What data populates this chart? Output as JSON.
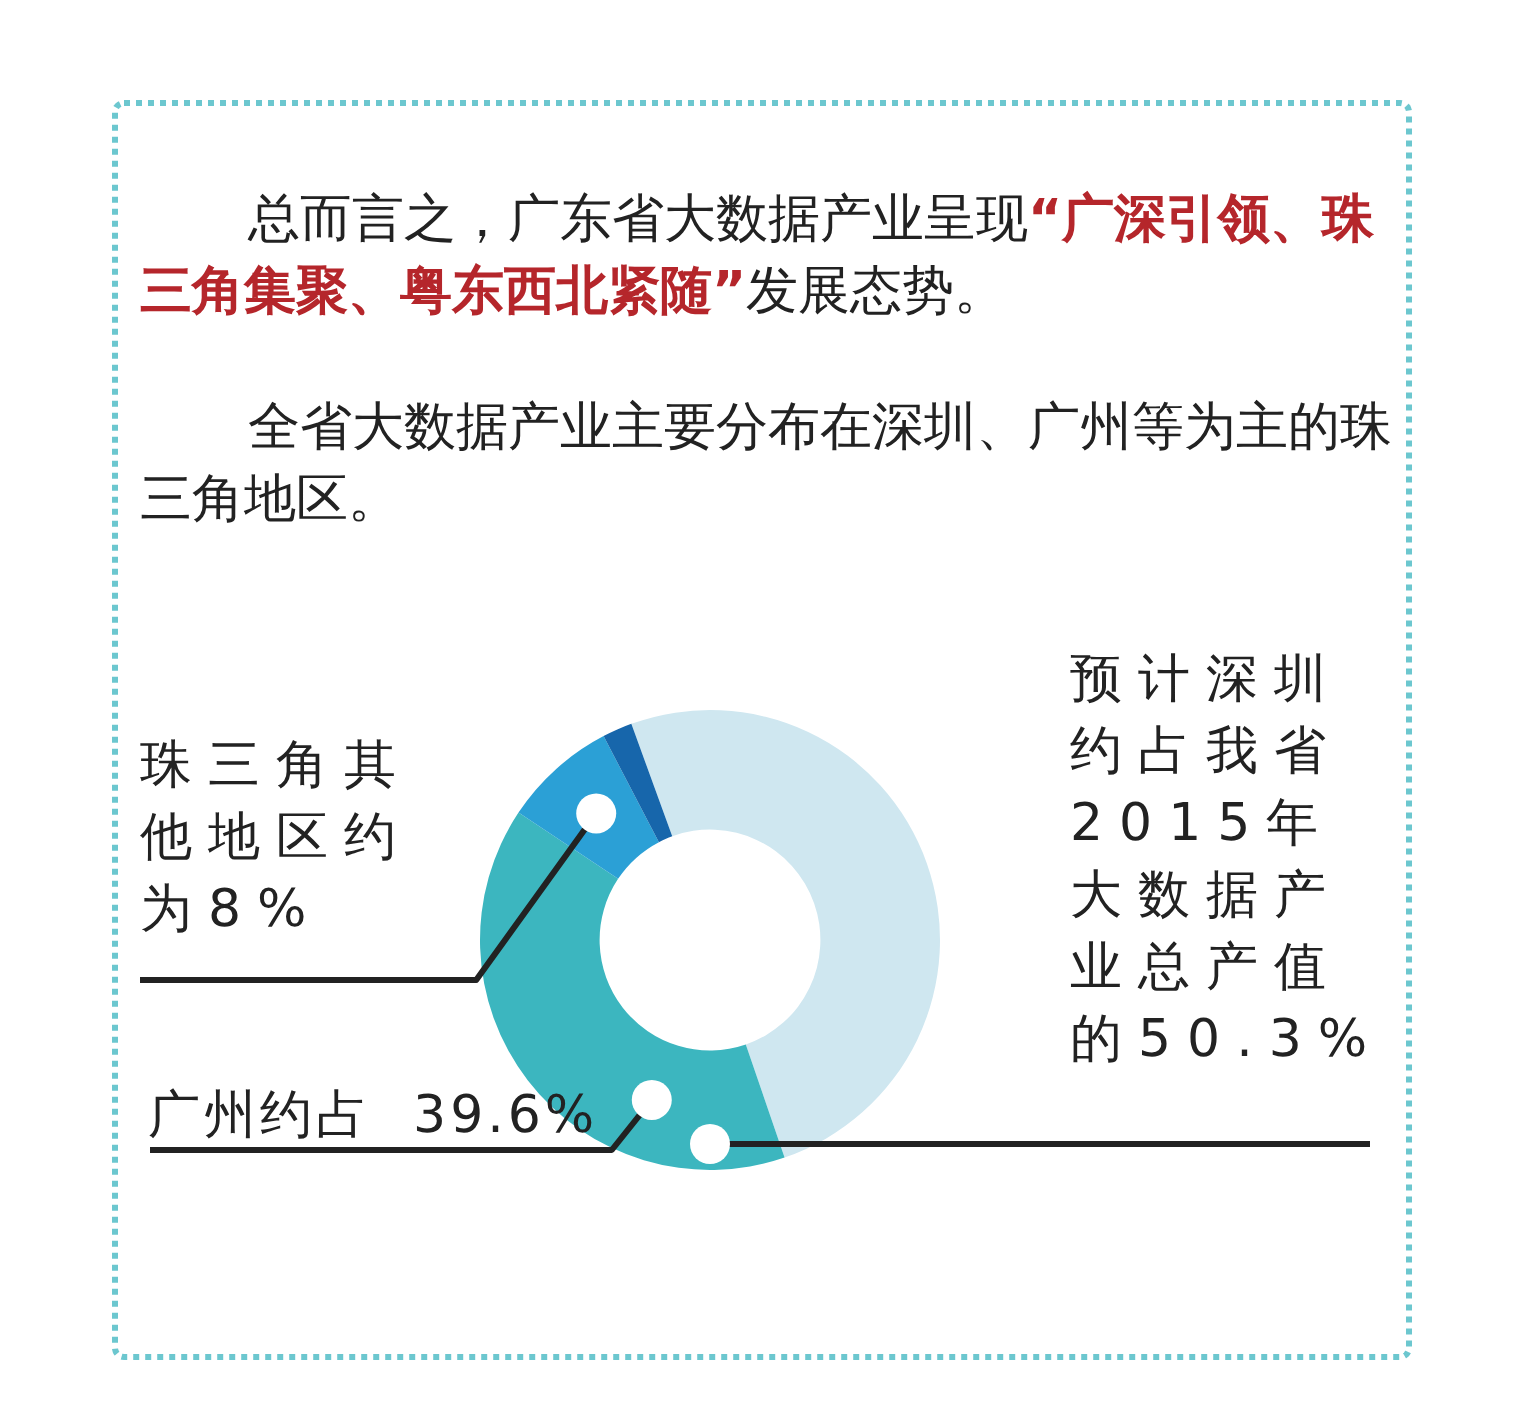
{
  "chart_data": {
    "type": "donut",
    "title": "总而言之，广东省大数据产业呈现“广深引领、珠三角集聚、粤东西北紧随”发展态势。",
    "subtitle": "全省大数据产业主要分布在深圳、广州等为主的珠三角地区。",
    "categories": [
      "预计深圳约占我省2015年大数据产业总产值的",
      "广州约占",
      "珠三角其他地区约为",
      null
    ],
    "values": [
      50.3,
      39.6,
      8,
      2.1
    ],
    "value_labels": [
      "50.3%",
      "39.6%",
      "8%",
      null
    ],
    "colors": [
      "#cfe7f0",
      "#3cb6bf",
      "#2ba0d6",
      "#1766ab"
    ],
    "legend": false
  }
}
